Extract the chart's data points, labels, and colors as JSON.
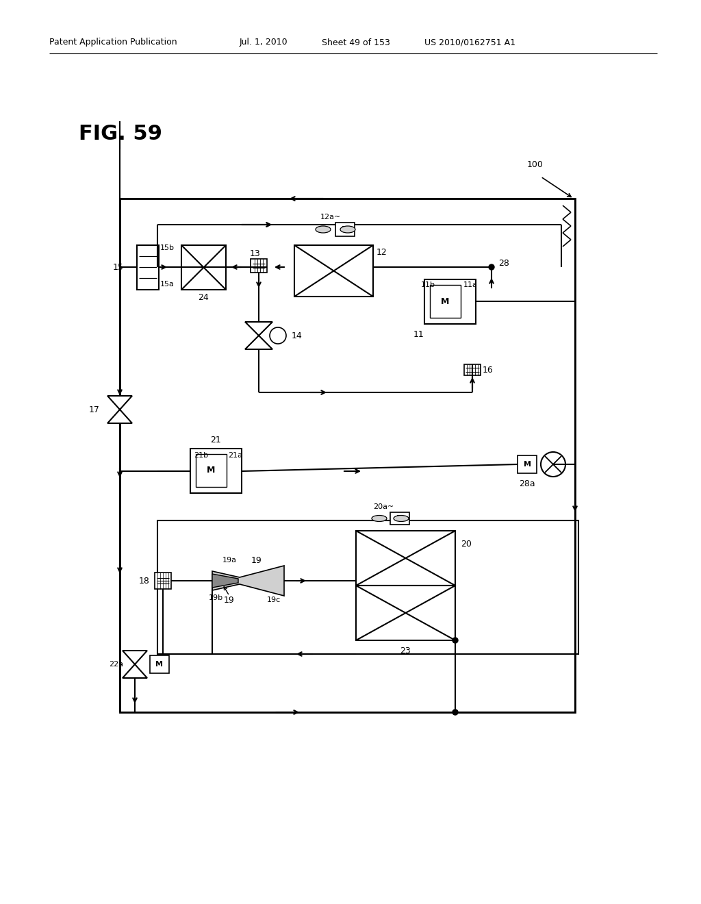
{
  "bg_color": "#ffffff",
  "header_left": "Patent Application Publication",
  "header_date": "Jul. 1, 2010",
  "header_sheet": "Sheet 49 of 153",
  "header_patent": "US 2010/0162751 A1",
  "fig_label": "FIG. 59",
  "label_100": "100"
}
